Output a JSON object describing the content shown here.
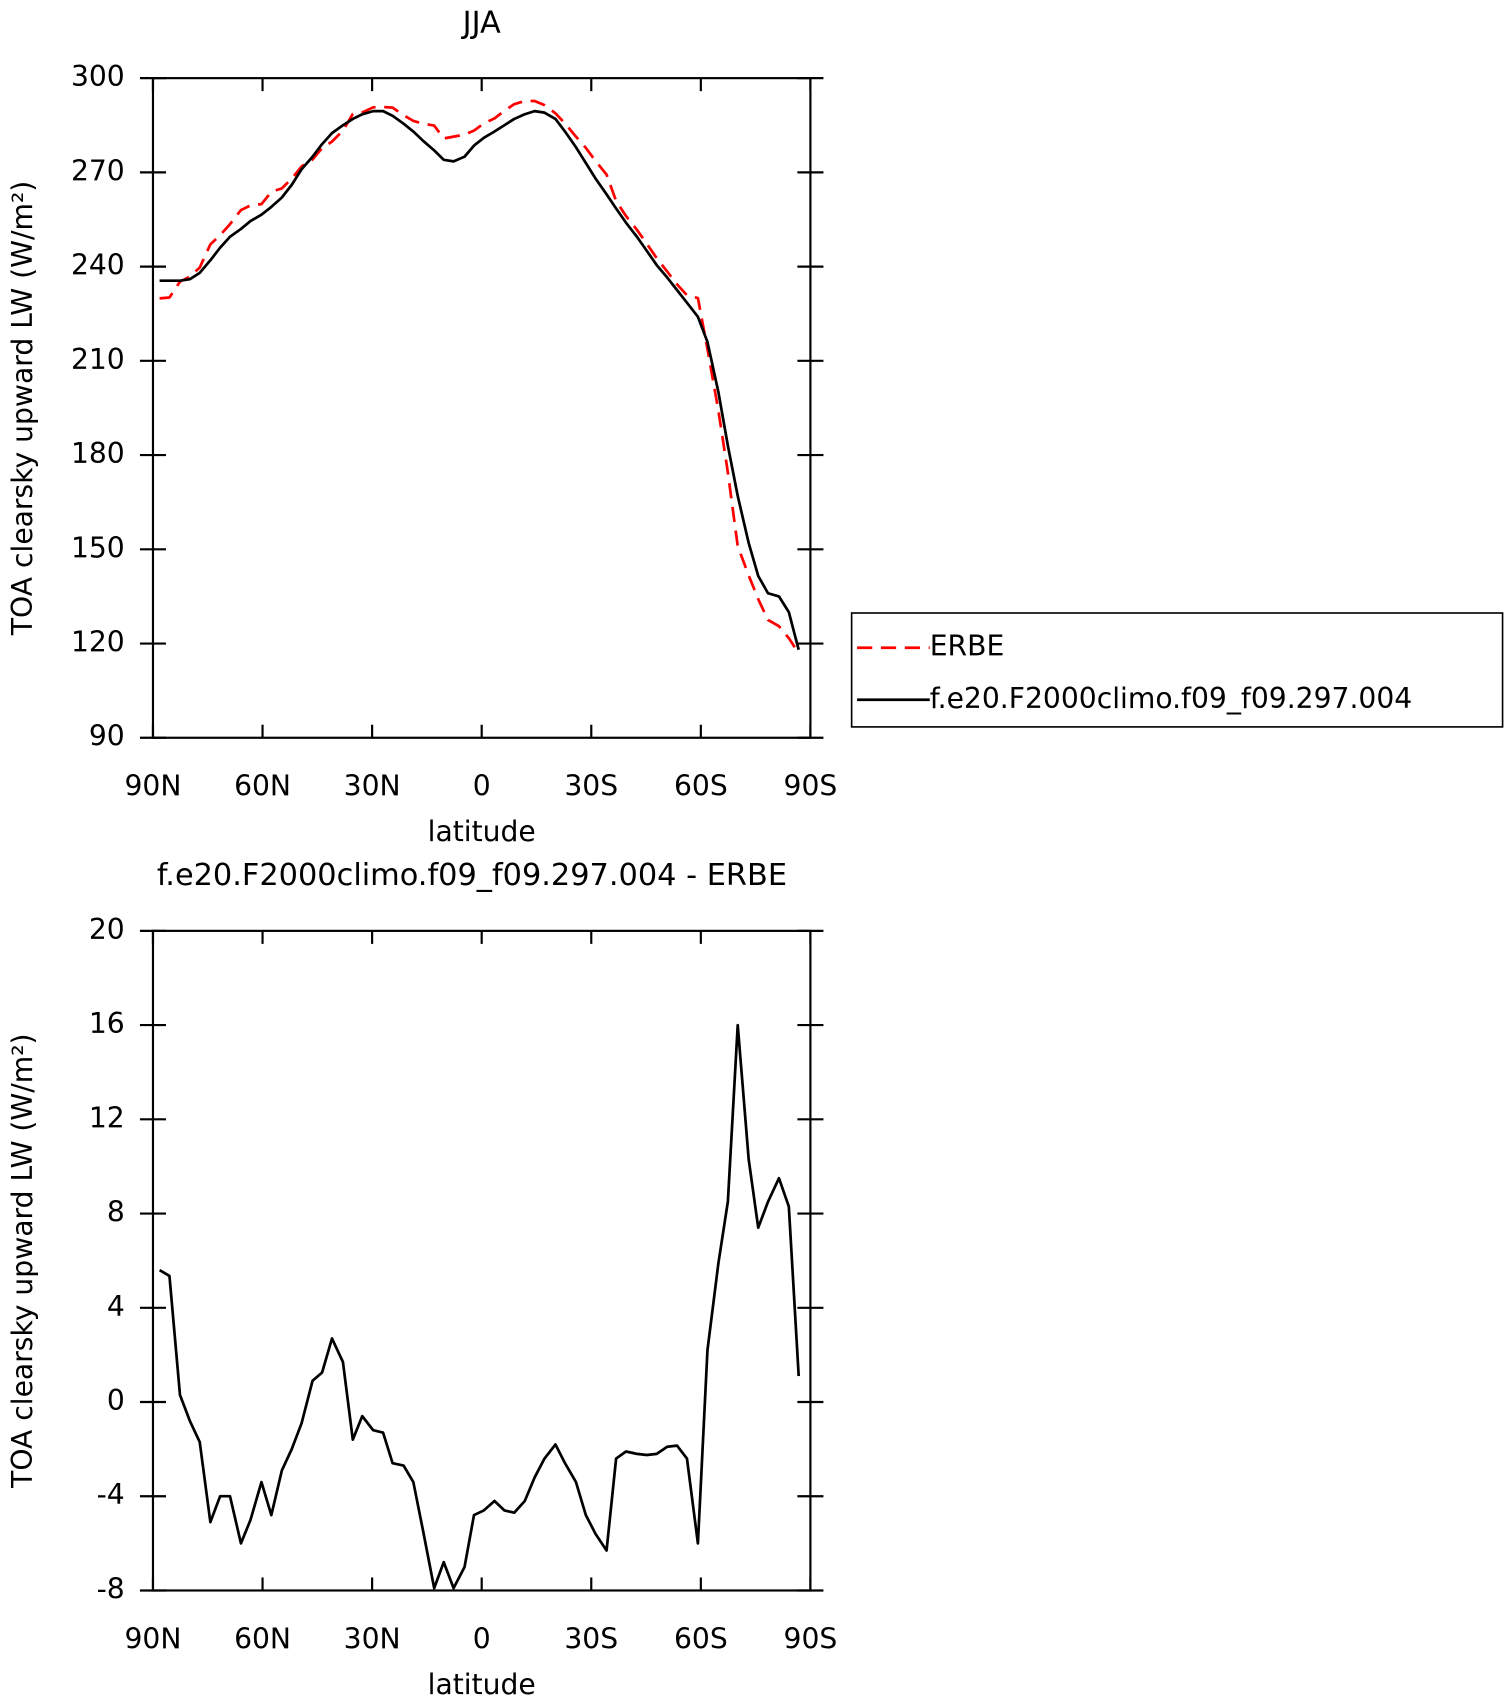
{
  "chart_data": [
    {
      "type": "line",
      "title": "JJA",
      "xlabel": "latitude",
      "ylabel": "TOA clearsky upward LW (W/m²)",
      "x": [
        88.2,
        85.5,
        82.6,
        79.9,
        77.2,
        74.3,
        71.6,
        68.9,
        65.9,
        63.3,
        60.3,
        57.6,
        54.7,
        52.0,
        49.3,
        46.3,
        43.7,
        41.0,
        38.0,
        35.3,
        32.7,
        29.7,
        27.0,
        24.4,
        21.4,
        18.7,
        16.0,
        13.0,
        10.4,
        7.7,
        4.7,
        2.1,
        -0.6,
        -3.5,
        -6.2,
        -8.9,
        -11.8,
        -14.5,
        -17.2,
        -20.2,
        -22.8,
        -25.8,
        -28.5,
        -31.2,
        -34.2,
        -36.8,
        -39.5,
        -42.5,
        -45.2,
        -47.9,
        -50.8,
        -53.5,
        -56.2,
        -59.2,
        -61.8,
        -64.8,
        -67.4,
        -70.1,
        -73.1,
        -75.7,
        -78.4,
        -81.4,
        -84.1,
        -86.8
      ],
      "series": [
        {
          "name": "ERBE",
          "color": "#ff0000",
          "linestyle": "dashed",
          "values": [
            229.9,
            230.15,
            235.2,
            236.8,
            239.7,
            247.1,
            250,
            253.5,
            258,
            259.5,
            259.9,
            263.8,
            264.9,
            268,
            271.9,
            274.1,
            277.75,
            279.8,
            283.3,
            288.6,
            289.1,
            290.7,
            290.8,
            290.6,
            288.2,
            286.4,
            285.5,
            284.9,
            280.8,
            281.4,
            282,
            283.3,
            285.6,
            287.2,
            289.6,
            291.7,
            292.7,
            292.7,
            291.4,
            288.8,
            285.6,
            281.4,
            277.8,
            273.6,
            269.3,
            260.9,
            256.1,
            251.7,
            247.25,
            242.7,
            238.4,
            234.35,
            230.9,
            230,
            213.8,
            194.1,
            174.5,
            151,
            141.7,
            134.1,
            127.5,
            125.5,
            121.7,
            116.9
          ]
        },
        {
          "name": "f.e20.F2000climo.f09_f09.297.004",
          "color": "#000000",
          "linestyle": "solid",
          "values": [
            235.5,
            235.5,
            235.5,
            236,
            238,
            242,
            246,
            249.5,
            252,
            254.5,
            256.5,
            259,
            262,
            266,
            271,
            275,
            279,
            282.5,
            285,
            287,
            288.5,
            289.5,
            289.5,
            288,
            285.5,
            283,
            280,
            277,
            274,
            273.5,
            275,
            278.5,
            281,
            283,
            285,
            287,
            288.5,
            289.5,
            289,
            287,
            283,
            278,
            273,
            268,
            263,
            258.5,
            254,
            249.5,
            245,
            240.5,
            236.5,
            232.5,
            228.5,
            224,
            216,
            200,
            183,
            167,
            152,
            141.5,
            136,
            135,
            130,
            118
          ]
        }
      ],
      "xlim": [
        90,
        -90
      ],
      "xticks": [
        {
          "value": 90,
          "label": "90N"
        },
        {
          "value": 60,
          "label": "60N"
        },
        {
          "value": 30,
          "label": "30N"
        },
        0,
        {
          "value": -30,
          "label": "30S"
        },
        {
          "value": -60,
          "label": "60S"
        },
        {
          "value": -90,
          "label": "90S"
        }
      ],
      "ylim": [
        90,
        300
      ],
      "yticks": [
        90,
        120,
        150,
        180,
        210,
        240,
        270,
        300
      ],
      "legend": "right"
    },
    {
      "type": "line",
      "title": "f.e20.F2000climo.f09_f09.297.004 - ERBE",
      "xlabel": "latitude",
      "ylabel": "TOA clearsky upward LW (W/m²)",
      "x": [
        88.2,
        85.5,
        82.6,
        79.9,
        77.2,
        74.3,
        71.6,
        68.9,
        65.9,
        63.3,
        60.3,
        57.6,
        54.7,
        52.0,
        49.3,
        46.3,
        43.7,
        41.0,
        38.0,
        35.3,
        32.7,
        29.7,
        27.0,
        24.4,
        21.4,
        18.7,
        16.0,
        13.0,
        10.4,
        7.7,
        4.7,
        2.1,
        -0.6,
        -3.5,
        -6.2,
        -8.9,
        -11.8,
        -14.5,
        -17.2,
        -20.2,
        -22.8,
        -25.8,
        -28.5,
        -31.2,
        -34.2,
        -36.8,
        -39.5,
        -42.5,
        -45.2,
        -47.9,
        -50.8,
        -53.5,
        -56.2,
        -59.2,
        -61.8,
        -64.8,
        -67.4,
        -70.1,
        -73.1,
        -75.7,
        -78.4,
        -81.4,
        -84.1,
        -86.8
      ],
      "color": "#000000",
      "values": [
        5.6,
        5.35,
        0.3,
        -0.8,
        -1.7,
        -5.1,
        -4.0,
        -4.0,
        -6.0,
        -5.0,
        -3.4,
        -4.8,
        -2.9,
        -2.0,
        -0.9,
        0.9,
        1.25,
        2.7,
        1.7,
        -1.6,
        -0.6,
        -1.2,
        -1.3,
        -2.6,
        -2.7,
        -3.4,
        -5.5,
        -7.9,
        -6.8,
        -7.9,
        -7.0,
        -4.8,
        -4.6,
        -4.2,
        -4.6,
        -4.7,
        -4.2,
        -3.2,
        -2.4,
        -1.8,
        -2.6,
        -3.4,
        -4.8,
        -5.6,
        -6.3,
        -2.4,
        -2.1,
        -2.2,
        -2.25,
        -2.2,
        -1.9,
        -1.85,
        -2.4,
        -6.0,
        2.2,
        5.9,
        8.5,
        16.0,
        10.3,
        7.4,
        8.5,
        9.5,
        8.3,
        1.1
      ],
      "xlim": [
        90,
        -90
      ],
      "xticks": [
        {
          "value": 90,
          "label": "90N"
        },
        {
          "value": 60,
          "label": "60N"
        },
        {
          "value": 30,
          "label": "30N"
        },
        0,
        {
          "value": -30,
          "label": "30S"
        },
        {
          "value": -60,
          "label": "60S"
        },
        {
          "value": -90,
          "label": "90S"
        }
      ],
      "ylim": [
        -8,
        20
      ],
      "yticks": [
        -8,
        -4,
        0,
        4,
        8,
        12,
        16,
        20
      ]
    }
  ]
}
